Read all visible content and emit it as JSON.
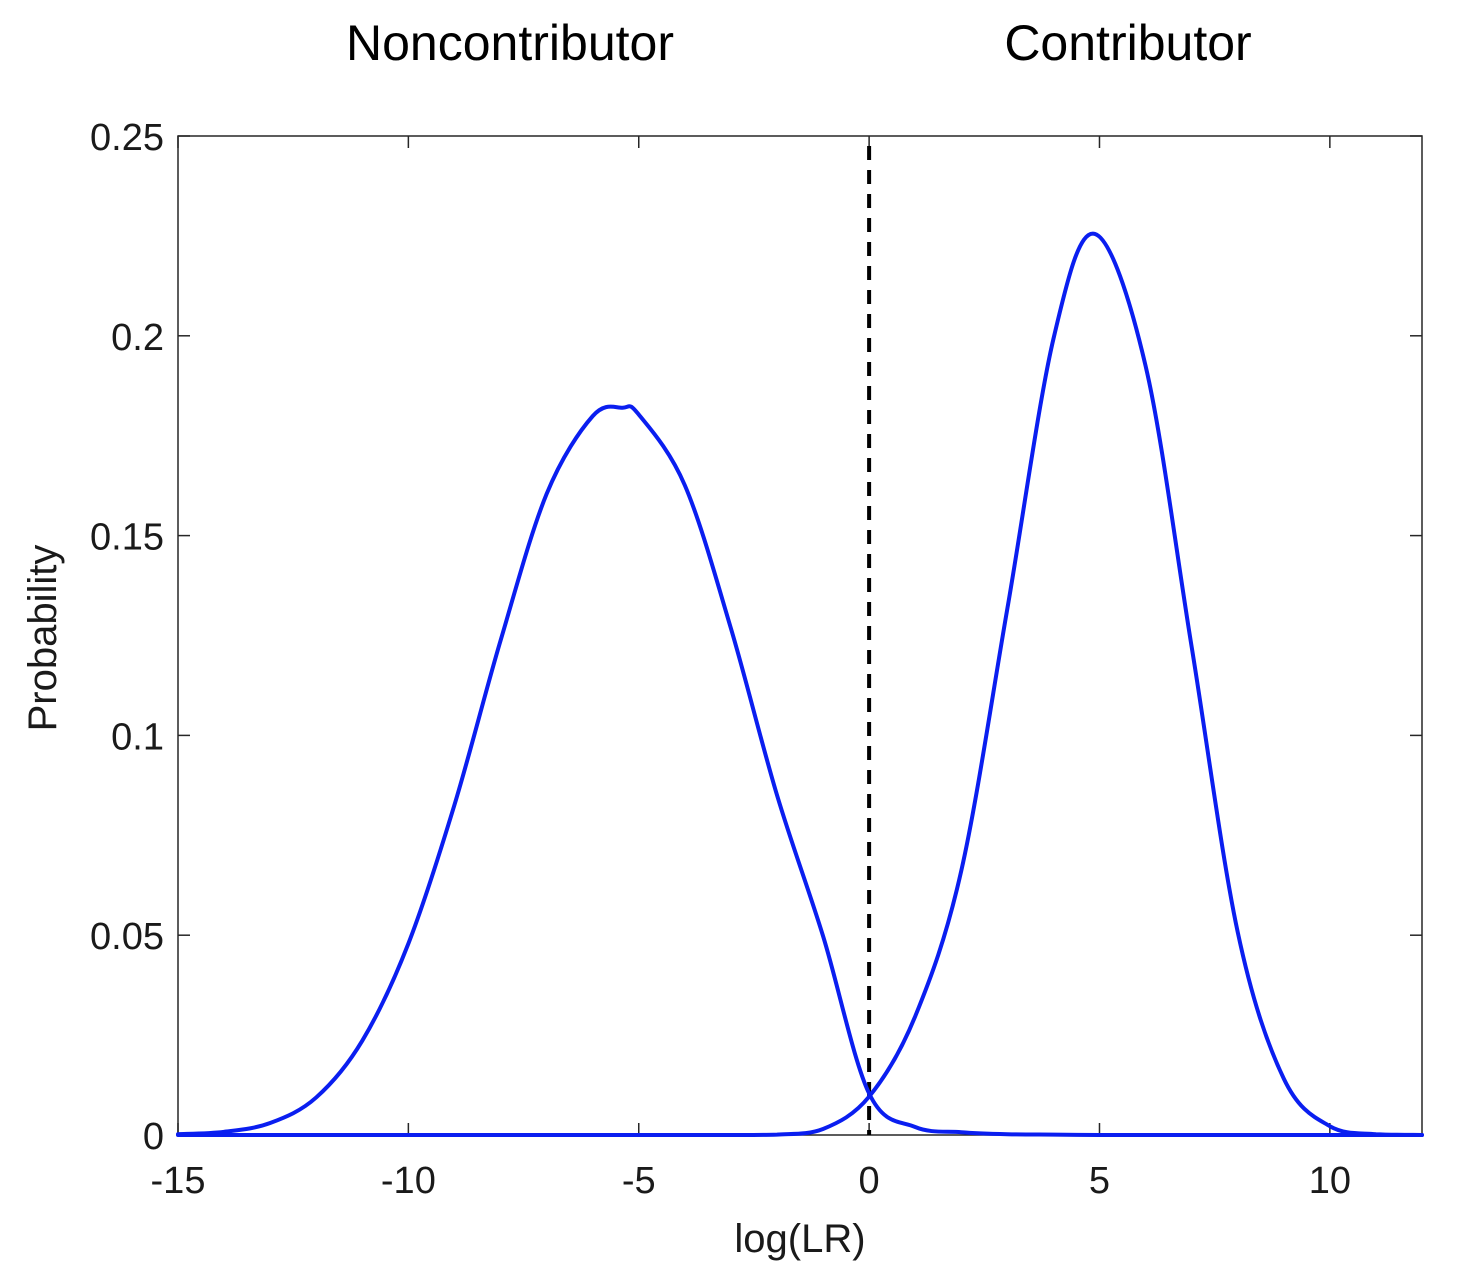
{
  "chart_data": {
    "type": "line",
    "title": "",
    "xlabel": "log(LR)",
    "ylabel": "Probability",
    "xlim": [
      -15,
      12
    ],
    "ylim": [
      0,
      0.25
    ],
    "x_ticks": [
      -15,
      -10,
      -5,
      0,
      5,
      10
    ],
    "x_tick_labels": [
      "-15",
      "-10",
      "-5",
      "0",
      "5",
      "10"
    ],
    "y_ticks": [
      0,
      0.05,
      0.1,
      0.15,
      0.2,
      0.25
    ],
    "y_tick_labels": [
      "0",
      "0.05",
      "0.1",
      "0.15",
      "0.2",
      "0.25"
    ],
    "grid": false,
    "series_color": "#0a1ef0",
    "series": [
      {
        "x": [
          -15,
          -14,
          -13,
          -12,
          -11,
          -10,
          -9,
          -8,
          -7,
          -6,
          -5.35,
          -5,
          -4,
          -3,
          -2,
          -1,
          0,
          1,
          2,
          3,
          4,
          5,
          6,
          7,
          8,
          9,
          10,
          11,
          12
        ],
        "values": [
          0.0002,
          0.0008,
          0.003,
          0.0094,
          0.0236,
          0.0479,
          0.0826,
          0.1237,
          0.1604,
          0.1799,
          0.182,
          0.1803,
          0.1626,
          0.1268,
          0.0851,
          0.0498,
          0.0104,
          0.002,
          0.0007,
          0.0002,
          0.0001,
          0,
          0,
          0,
          0,
          0,
          0,
          0,
          0
        ]
      },
      {
        "x": [
          -15,
          -10,
          -5,
          -3,
          -2,
          -1,
          0,
          1,
          2,
          3,
          4,
          4.9,
          6,
          7,
          8,
          9,
          10,
          11,
          12
        ],
        "values": [
          0,
          0,
          0,
          0,
          0.0001,
          0.0015,
          0.0096,
          0.0297,
          0.0661,
          0.1317,
          0.1992,
          0.2255,
          0.1925,
          0.1222,
          0.0508,
          0.0141,
          0.0022,
          0.0002,
          0
        ]
      }
    ],
    "threshold": {
      "x": 0,
      "style": "dashed",
      "color": "#000000"
    },
    "annotations": [
      {
        "text": "Noncontributor"
      },
      {
        "text": "Contributor"
      }
    ]
  }
}
